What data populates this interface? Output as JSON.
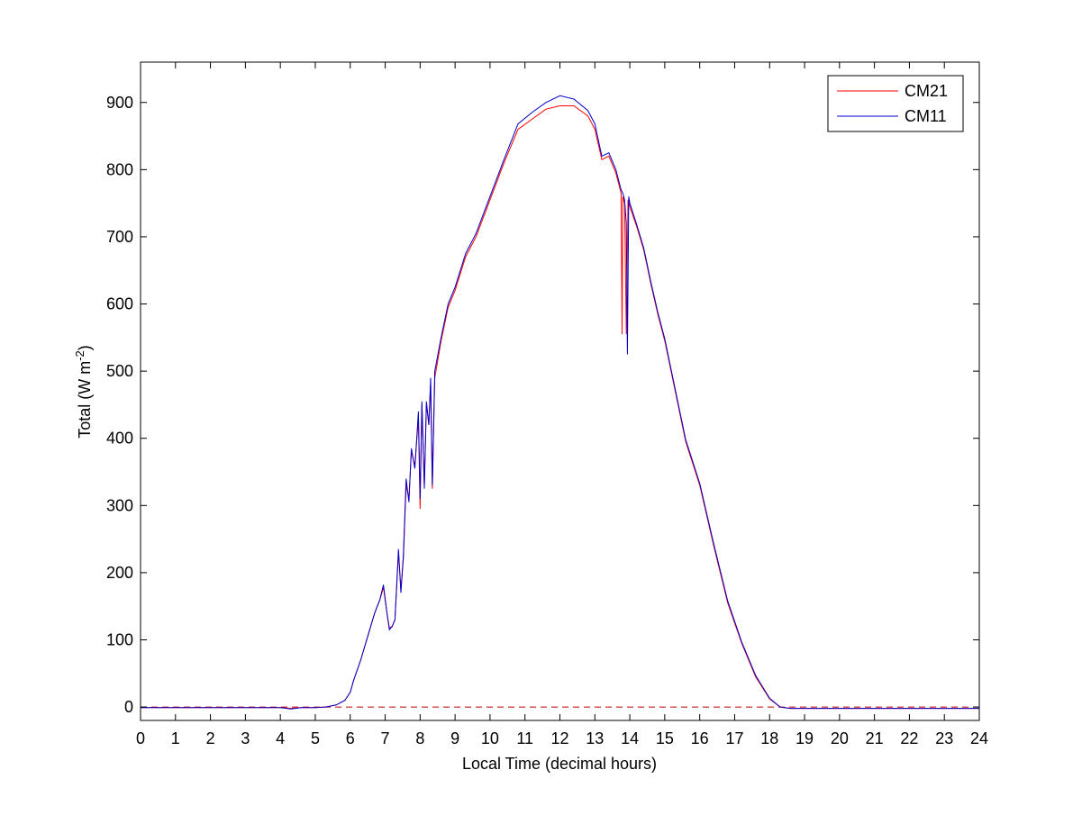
{
  "chart_data": {
    "type": "line",
    "title": "",
    "xlabel": "Local Time (decimal hours)",
    "ylabel": {
      "main": "Total (W m",
      "sup": "-2",
      "close": ")"
    },
    "xlim": [
      0,
      24
    ],
    "ylim": [
      -20,
      960
    ],
    "xticks": [
      0,
      1,
      2,
      3,
      4,
      5,
      6,
      7,
      8,
      9,
      10,
      11,
      12,
      13,
      14,
      15,
      16,
      17,
      18,
      19,
      20,
      21,
      22,
      23,
      24
    ],
    "xtick_labels": [
      "0",
      "1",
      "2",
      "3",
      "4",
      "5",
      "6",
      "7",
      "8",
      "9",
      "10",
      "11",
      "12",
      "13",
      "14",
      "15",
      "16",
      "17",
      "18",
      "19",
      "20",
      "21",
      "22",
      "23",
      "24"
    ],
    "yticks": [
      0,
      100,
      200,
      300,
      400,
      500,
      600,
      700,
      800,
      900
    ],
    "ytick_labels": [
      "0",
      "100",
      "200",
      "300",
      "400",
      "500",
      "600",
      "700",
      "800",
      "900"
    ],
    "grid": false,
    "legend_position": "top-right",
    "reference_line": {
      "y": 0,
      "style": "dashed",
      "color": "#c00000"
    },
    "series": [
      {
        "name": "CM21",
        "color": "#ff0000",
        "points": [
          [
            0,
            -1
          ],
          [
            1,
            -1
          ],
          [
            2,
            -1
          ],
          [
            3,
            -1
          ],
          [
            4,
            -1
          ],
          [
            4.3,
            -2
          ],
          [
            4.6,
            -1
          ],
          [
            5,
            -1
          ],
          [
            5.3,
            0
          ],
          [
            5.6,
            3
          ],
          [
            5.85,
            10
          ],
          [
            6.0,
            22
          ],
          [
            6.1,
            40
          ],
          [
            6.3,
            70
          ],
          [
            6.5,
            105
          ],
          [
            6.7,
            140
          ],
          [
            6.85,
            160
          ],
          [
            6.95,
            178
          ],
          [
            7.05,
            140
          ],
          [
            7.12,
            118
          ],
          [
            7.2,
            120
          ],
          [
            7.28,
            130
          ],
          [
            7.38,
            230
          ],
          [
            7.45,
            175
          ],
          [
            7.52,
            220
          ],
          [
            7.6,
            330
          ],
          [
            7.68,
            310
          ],
          [
            7.75,
            380
          ],
          [
            7.85,
            360
          ],
          [
            7.95,
            430
          ],
          [
            8.0,
            295
          ],
          [
            8.05,
            450
          ],
          [
            8.12,
            330
          ],
          [
            8.18,
            450
          ],
          [
            8.25,
            420
          ],
          [
            8.3,
            480
          ],
          [
            8.35,
            325
          ],
          [
            8.42,
            490
          ],
          [
            8.6,
            545
          ],
          [
            8.8,
            595
          ],
          [
            9.0,
            620
          ],
          [
            9.3,
            670
          ],
          [
            9.6,
            700
          ],
          [
            10.0,
            755
          ],
          [
            10.4,
            810
          ],
          [
            10.8,
            860
          ],
          [
            11.2,
            875
          ],
          [
            11.6,
            890
          ],
          [
            12.0,
            895
          ],
          [
            12.4,
            895
          ],
          [
            12.8,
            880
          ],
          [
            13.0,
            860
          ],
          [
            13.2,
            815
          ],
          [
            13.4,
            820
          ],
          [
            13.6,
            795
          ],
          [
            13.75,
            765
          ],
          [
            13.78,
            555
          ],
          [
            13.8,
            760
          ],
          [
            13.85,
            750
          ],
          [
            13.9,
            555
          ],
          [
            13.95,
            755
          ],
          [
            14.0,
            745
          ],
          [
            14.2,
            715
          ],
          [
            14.4,
            680
          ],
          [
            14.6,
            630
          ],
          [
            14.8,
            585
          ],
          [
            15.0,
            545
          ],
          [
            15.3,
            470
          ],
          [
            15.6,
            395
          ],
          [
            16.0,
            330
          ],
          [
            16.4,
            240
          ],
          [
            16.8,
            155
          ],
          [
            17.2,
            95
          ],
          [
            17.6,
            45
          ],
          [
            18.0,
            12
          ],
          [
            18.3,
            0
          ],
          [
            18.6,
            -2
          ],
          [
            19,
            -2
          ],
          [
            20,
            -2
          ],
          [
            21,
            -2
          ],
          [
            22,
            -2
          ],
          [
            23,
            -2
          ],
          [
            24,
            -2
          ]
        ]
      },
      {
        "name": "CM11",
        "color": "#0000cc",
        "points": [
          [
            0,
            -1
          ],
          [
            1,
            -1
          ],
          [
            2,
            -1
          ],
          [
            3,
            -1
          ],
          [
            4,
            -1
          ],
          [
            4.3,
            -3
          ],
          [
            4.6,
            -1
          ],
          [
            5,
            -1
          ],
          [
            5.3,
            0
          ],
          [
            5.6,
            3
          ],
          [
            5.85,
            10
          ],
          [
            6.0,
            22
          ],
          [
            6.1,
            40
          ],
          [
            6.3,
            70
          ],
          [
            6.5,
            105
          ],
          [
            6.7,
            140
          ],
          [
            6.85,
            160
          ],
          [
            6.95,
            182
          ],
          [
            7.05,
            140
          ],
          [
            7.12,
            115
          ],
          [
            7.2,
            120
          ],
          [
            7.28,
            130
          ],
          [
            7.38,
            235
          ],
          [
            7.45,
            170
          ],
          [
            7.52,
            225
          ],
          [
            7.6,
            340
          ],
          [
            7.68,
            305
          ],
          [
            7.75,
            385
          ],
          [
            7.85,
            355
          ],
          [
            7.95,
            440
          ],
          [
            8.0,
            310
          ],
          [
            8.05,
            455
          ],
          [
            8.12,
            325
          ],
          [
            8.18,
            455
          ],
          [
            8.25,
            420
          ],
          [
            8.3,
            490
          ],
          [
            8.35,
            330
          ],
          [
            8.42,
            500
          ],
          [
            8.6,
            550
          ],
          [
            8.8,
            600
          ],
          [
            9.0,
            625
          ],
          [
            9.3,
            675
          ],
          [
            9.6,
            705
          ],
          [
            10.0,
            760
          ],
          [
            10.4,
            815
          ],
          [
            10.8,
            868
          ],
          [
            11.2,
            885
          ],
          [
            11.6,
            900
          ],
          [
            12.0,
            910
          ],
          [
            12.4,
            905
          ],
          [
            12.8,
            888
          ],
          [
            13.0,
            868
          ],
          [
            13.2,
            820
          ],
          [
            13.4,
            825
          ],
          [
            13.6,
            800
          ],
          [
            13.75,
            770
          ],
          [
            13.8,
            765
          ],
          [
            13.85,
            755
          ],
          [
            13.9,
            720
          ],
          [
            13.93,
            525
          ],
          [
            13.97,
            760
          ],
          [
            14.0,
            750
          ],
          [
            14.2,
            718
          ],
          [
            14.4,
            683
          ],
          [
            14.6,
            633
          ],
          [
            14.8,
            588
          ],
          [
            15.0,
            548
          ],
          [
            15.3,
            473
          ],
          [
            15.6,
            398
          ],
          [
            16.0,
            333
          ],
          [
            16.4,
            243
          ],
          [
            16.8,
            158
          ],
          [
            17.2,
            97
          ],
          [
            17.6,
            47
          ],
          [
            18.0,
            13
          ],
          [
            18.3,
            0
          ],
          [
            18.6,
            -2
          ],
          [
            19,
            -2
          ],
          [
            20,
            -2
          ],
          [
            21,
            -2
          ],
          [
            22,
            -2
          ],
          [
            23,
            -2
          ],
          [
            24,
            -2
          ]
        ]
      }
    ]
  }
}
